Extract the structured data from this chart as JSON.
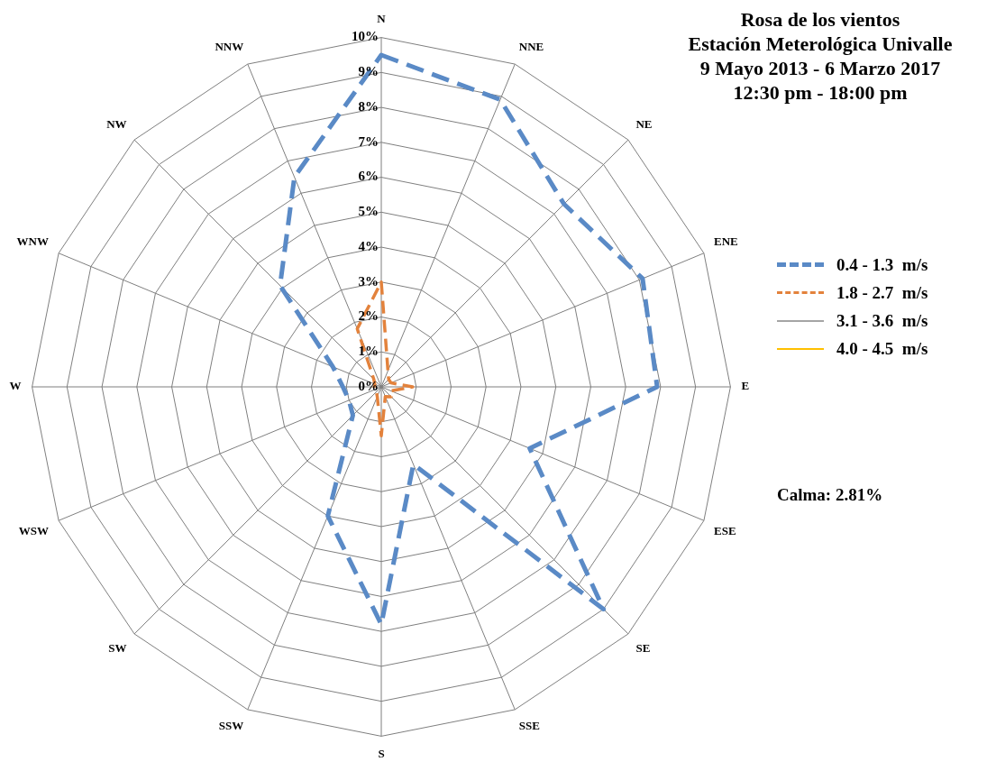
{
  "chart_data": {
    "type": "radar",
    "title": "Rosa de los vientos",
    "subtitle": "Estación Meterológica Univalle\n9 Mayo 2013 - 6 Marzo 2017\n12:30  pm - 18:00 pm",
    "categories": [
      "N",
      "NNE",
      "NE",
      "ENE",
      "E",
      "ESE",
      "SE",
      "SSE",
      "S",
      "SSW",
      "SW",
      "WSW",
      "W",
      "WNW",
      "NW",
      "NNW"
    ],
    "series": [
      {
        "name": "0.4 - 1.3  m/s",
        "color": "#5a8ac6",
        "line_style": "dashed",
        "values": [
          9.5,
          8.9,
          7.4,
          8.1,
          7.9,
          4.6,
          9.0,
          2.4,
          6.8,
          4.0,
          1.15,
          1.0,
          1.1,
          1.5,
          4.1,
          6.5
        ]
      },
      {
        "name": "1.8 - 2.7  m/s",
        "color": "#e3823c",
        "line_style": "dashed",
        "values": [
          3.0,
          0.5,
          0.3,
          0.3,
          0.9,
          0.3,
          0.4,
          0.3,
          1.4,
          0.3,
          0.2,
          0.2,
          0.2,
          0.2,
          0.3,
          1.8
        ]
      },
      {
        "name": "3.1 - 3.6  m/s",
        "color": "#a5a5a5",
        "line_style": "solid",
        "values": [
          null,
          null,
          null,
          null,
          null,
          null,
          null,
          null,
          null,
          null,
          null,
          null,
          null,
          null,
          null,
          null
        ]
      },
      {
        "name": "4.0 - 4.5  m/s",
        "color": "#ffc000",
        "line_style": "solid",
        "values": [
          null,
          null,
          null,
          null,
          null,
          null,
          null,
          null,
          null,
          null,
          null,
          null,
          null,
          null,
          null,
          null
        ]
      }
    ],
    "ylim": [
      0,
      10
    ],
    "yticks": [
      {
        "value": 0,
        "label": "0%"
      },
      {
        "value": 1,
        "label": "1%"
      },
      {
        "value": 2,
        "label": "2%"
      },
      {
        "value": 3,
        "label": "3%"
      },
      {
        "value": 4,
        "label": "4%"
      },
      {
        "value": 5,
        "label": "5%"
      },
      {
        "value": 6,
        "label": "6%"
      },
      {
        "value": 7,
        "label": "7%"
      },
      {
        "value": 8,
        "label": "8%"
      },
      {
        "value": 9,
        "label": "9%"
      },
      {
        "value": 10,
        "label": "10%"
      }
    ],
    "grid": true,
    "legend": "right",
    "marker": "none",
    "annotations": [
      "Calma: 2.81%"
    ]
  }
}
